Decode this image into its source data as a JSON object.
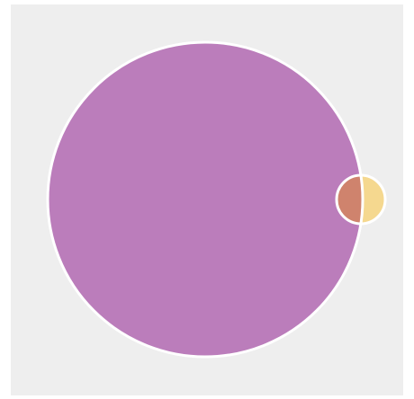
{
  "diagram": {
    "type": "venn",
    "sets": [
      {
        "color": "#bb7dbb"
      },
      {
        "color": "#f5d88f"
      }
    ],
    "overlap_color": "#cf836d",
    "background": "#eeeeee",
    "stroke": "#ffffff"
  }
}
